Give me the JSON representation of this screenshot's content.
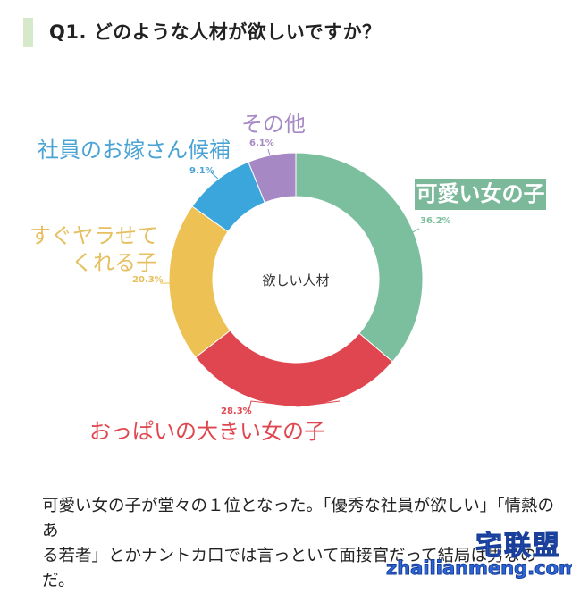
{
  "header": {
    "title": "Q1. どのような人材が欲しいですか？"
  },
  "chart_data": {
    "type": "pie",
    "variant": "donut",
    "title": "Q1. どのような人材が欲しいですか？",
    "center_label": "欲しい人材",
    "categories": [
      "可愛い女の子",
      "おっぱいの大きい女の子",
      "すぐヤラせてくれる子",
      "社員のお嫁さん候補",
      "その他"
    ],
    "values": [
      36.2,
      28.3,
      20.3,
      9.1,
      6.1
    ],
    "value_labels": [
      "36.2%",
      "28.3%",
      "20.3%",
      "9.1%",
      "6.1%"
    ],
    "colors": [
      "#7cbf9e",
      "#e0464f",
      "#edc153",
      "#3aa6dc",
      "#a688c4"
    ],
    "start_angle_deg": 0,
    "direction": "clockwise",
    "legend_position": "none (direct labels)"
  },
  "labels": {
    "kawaii": "可愛い女の子",
    "kawaii_pct": "36.2%",
    "oppai": "おっぱいの大きい女の子",
    "oppai_pct": "28.3%",
    "sugu_line1": "すぐヤラせて",
    "sugu_line2": "くれる子",
    "sugu_pct": "20.3%",
    "shain": "社員のお嫁さん候補",
    "shain_pct": "9.1%",
    "sonota": "その他",
    "sonota_pct": "6.1%"
  },
  "body": {
    "line1": "可愛い女の子が堂々の１位となった。「優秀な社員が欲しい」「情熱のあ",
    "line2": "る若者」とかナントカ口では言っといて面接官だって結局は男なのだ。"
  },
  "watermark": {
    "line1": "宅联盟",
    "line2": "zhailianmeng.com"
  }
}
